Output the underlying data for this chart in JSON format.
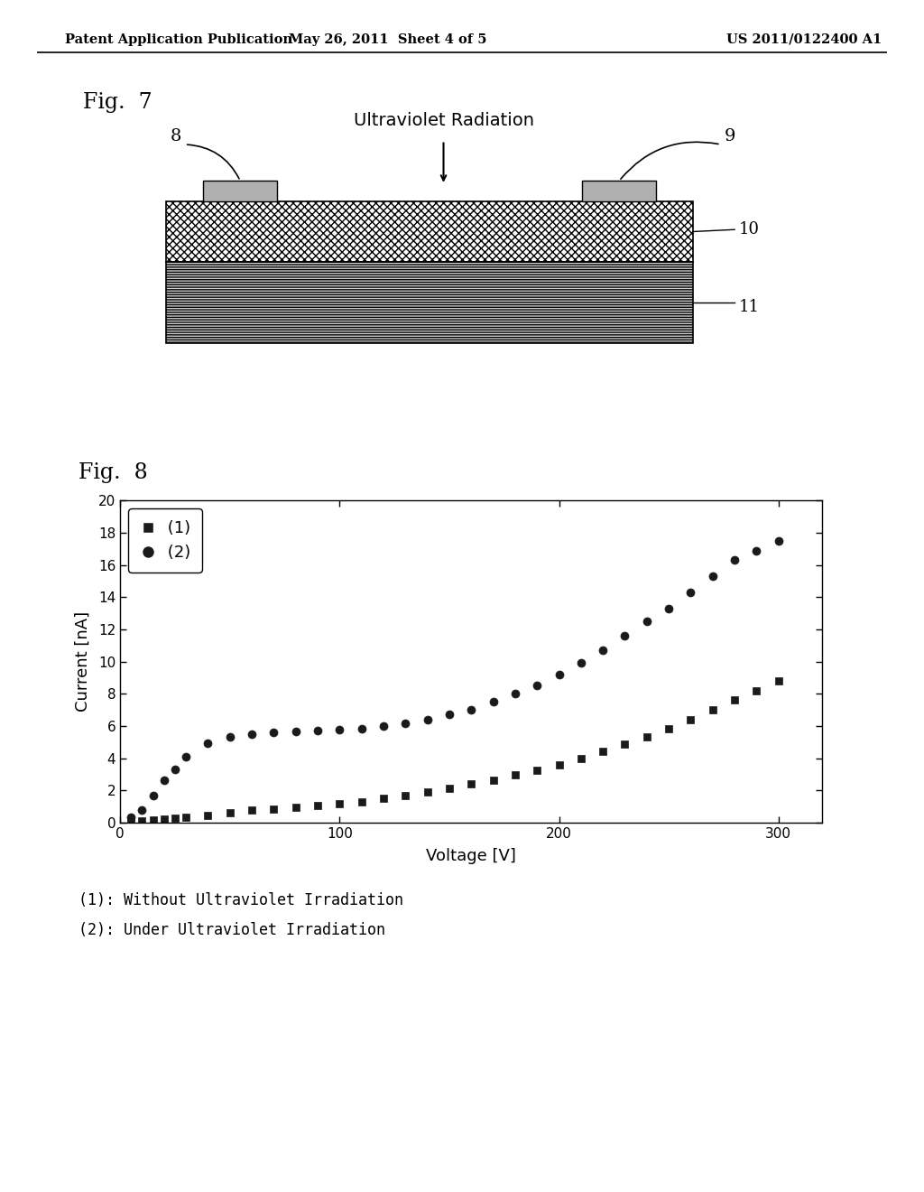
{
  "header_left": "Patent Application Publication",
  "header_mid": "May 26, 2011  Sheet 4 of 5",
  "header_right": "US 2011/0122400 A1",
  "fig7_label": "Fig.  7",
  "fig8_label": "Fig.  8",
  "uv_label": "Ultraviolet Radiation",
  "label_8": "8",
  "label_9": "9",
  "label_10": "10",
  "label_11": "11",
  "xlabel": "Voltage [V]",
  "ylabel": "Current [nA]",
  "xlim": [
    0,
    320
  ],
  "ylim": [
    0,
    20
  ],
  "xticks": [
    0,
    100,
    200,
    300
  ],
  "yticks": [
    0,
    2,
    4,
    6,
    8,
    10,
    12,
    14,
    16,
    18,
    20
  ],
  "series1_x": [
    5,
    10,
    15,
    20,
    25,
    30,
    40,
    50,
    60,
    70,
    80,
    90,
    100,
    110,
    120,
    130,
    140,
    150,
    160,
    170,
    180,
    190,
    200,
    210,
    220,
    230,
    240,
    250,
    260,
    270,
    280,
    290,
    300
  ],
  "series1_y": [
    0.05,
    0.1,
    0.15,
    0.2,
    0.25,
    0.3,
    0.45,
    0.6,
    0.75,
    0.85,
    0.95,
    1.05,
    1.15,
    1.3,
    1.5,
    1.7,
    1.9,
    2.1,
    2.4,
    2.65,
    2.95,
    3.25,
    3.6,
    4.0,
    4.4,
    4.85,
    5.3,
    5.8,
    6.4,
    7.0,
    7.6,
    8.2,
    8.8
  ],
  "series2_x": [
    5,
    10,
    15,
    20,
    25,
    30,
    40,
    50,
    60,
    70,
    80,
    90,
    100,
    110,
    120,
    130,
    140,
    150,
    160,
    170,
    180,
    190,
    200,
    210,
    220,
    230,
    240,
    250,
    260,
    270,
    280,
    290,
    300
  ],
  "series2_y": [
    0.3,
    0.8,
    1.7,
    2.6,
    3.3,
    4.1,
    4.9,
    5.3,
    5.5,
    5.6,
    5.65,
    5.7,
    5.75,
    5.8,
    6.0,
    6.15,
    6.4,
    6.7,
    7.0,
    7.5,
    8.0,
    8.5,
    9.2,
    9.9,
    10.7,
    11.6,
    12.5,
    13.3,
    14.3,
    15.3,
    16.3,
    16.9,
    17.5
  ],
  "caption1": "(1): Without Ultraviolet Irradiation",
  "caption2": "(2): Under Ultraviolet Irradiation",
  "bg_color": "#ffffff",
  "text_color": "#000000",
  "marker_color": "#1a1a1a"
}
